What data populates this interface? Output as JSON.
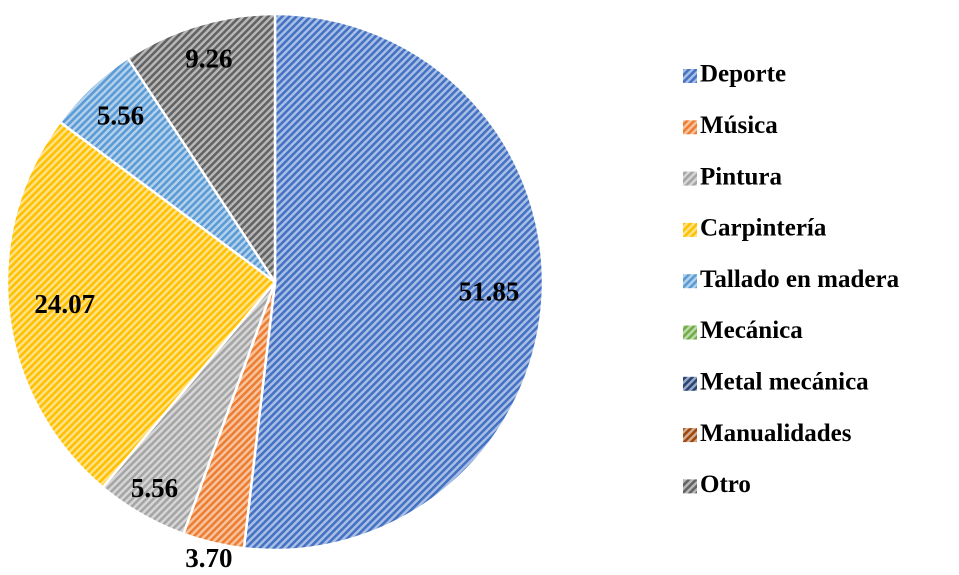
{
  "chart_data": {
    "type": "pie",
    "categories": [
      "Deporte",
      "Música",
      "Pintura",
      "Carpintería",
      "Tallado en madera",
      "Mecánica",
      "Metal mecánica",
      "Manualidades",
      "Otro"
    ],
    "values": [
      51.85,
      3.7,
      5.56,
      24.07,
      5.56,
      0,
      0,
      0,
      9.26
    ],
    "value_labels": [
      "51.85",
      "3.70",
      "5.56",
      "24.07",
      "5.56",
      null,
      null,
      null,
      "9.26"
    ],
    "colors": [
      "#4472c4",
      "#ed7d31",
      "#a5a5a5",
      "#ffc000",
      "#5b9bd5",
      "#70ad47",
      "#264478",
      "#9e480e",
      "#636363"
    ],
    "legend": "right"
  }
}
